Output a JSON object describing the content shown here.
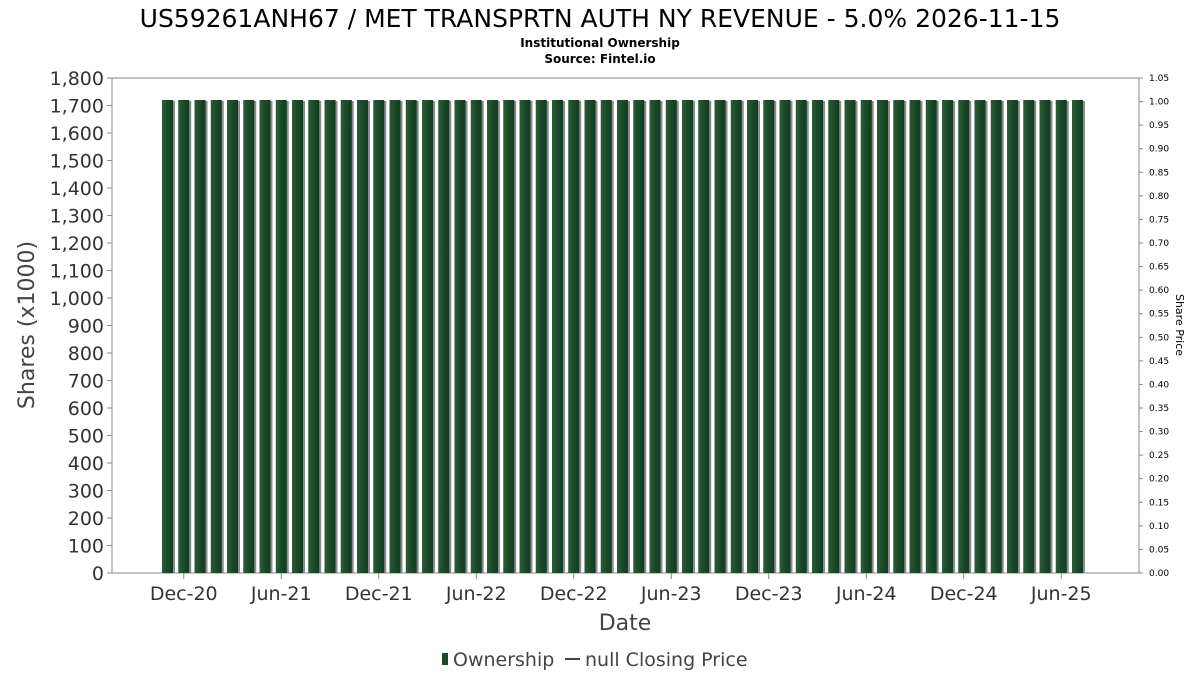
{
  "chart_data": {
    "type": "bar",
    "title": "US59261ANH67 / MET TRANSPRTN AUTH NY REVENUE - 5.0% 2026-11-15",
    "subtitle_lines": [
      "Institutional Ownership",
      "Source: Fintel.io"
    ],
    "xlabel": "Date",
    "ylabel": "Shares (x1000)",
    "y2label": "Share Price",
    "ylim": [
      0,
      1800
    ],
    "yticks": [
      0,
      100,
      200,
      300,
      400,
      500,
      600,
      700,
      800,
      900,
      1000,
      1100,
      1200,
      1300,
      1400,
      1500,
      1600,
      1700,
      1800
    ],
    "ytick_labels": [
      "0",
      "100",
      "200",
      "300",
      "400",
      "500",
      "600",
      "700",
      "800",
      "900",
      "1,000",
      "1,100",
      "1,200",
      "1,300",
      "1,400",
      "1,500",
      "1,600",
      "1,700",
      "1,800"
    ],
    "y2lim": [
      0,
      1.05
    ],
    "y2ticks": [
      0,
      0.05,
      0.1,
      0.15,
      0.2,
      0.25,
      0.3,
      0.35,
      0.4,
      0.45,
      0.5,
      0.55,
      0.6,
      0.65,
      0.7,
      0.75,
      0.8,
      0.85,
      0.9,
      0.95,
      1.0,
      1.05
    ],
    "y2tick_labels": [
      "0.00",
      "0.05",
      "0.10",
      "0.15",
      "0.20",
      "0.25",
      "0.30",
      "0.35",
      "0.40",
      "0.45",
      "0.50",
      "0.55",
      "0.60",
      "0.65",
      "0.70",
      "0.75",
      "0.80",
      "0.85",
      "0.90",
      "0.95",
      "1.00",
      "1.05"
    ],
    "x_tick_labels": [
      "Dec-20",
      "Jun-21",
      "Dec-21",
      "Jun-22",
      "Dec-22",
      "Jun-23",
      "Dec-23",
      "Jun-24",
      "Dec-24",
      "Jun-25"
    ],
    "x_start": "2020-11",
    "x_end": "2025-08",
    "series": [
      {
        "name": "Ownership",
        "color": "#1a4a28",
        "values": [
          1720,
          1720,
          1720,
          1720,
          1720,
          1720,
          1720,
          1720,
          1720,
          1720,
          1720,
          1720,
          1720,
          1720,
          1720,
          1720,
          1720,
          1720,
          1720,
          1720,
          1720,
          1720,
          1720,
          1720,
          1720,
          1720,
          1720,
          1720,
          1720,
          1720,
          1720,
          1720,
          1720,
          1720,
          1720,
          1720,
          1720,
          1720,
          1720,
          1720,
          1720,
          1720,
          1720,
          1720,
          1720,
          1720,
          1720,
          1720,
          1720,
          1720,
          1720,
          1720,
          1720,
          1720,
          1720,
          1720,
          1720
        ]
      }
    ],
    "legend": {
      "placement": "bottom-center",
      "entries": [
        "Ownership",
        "null Closing Price"
      ]
    },
    "grid": false
  }
}
